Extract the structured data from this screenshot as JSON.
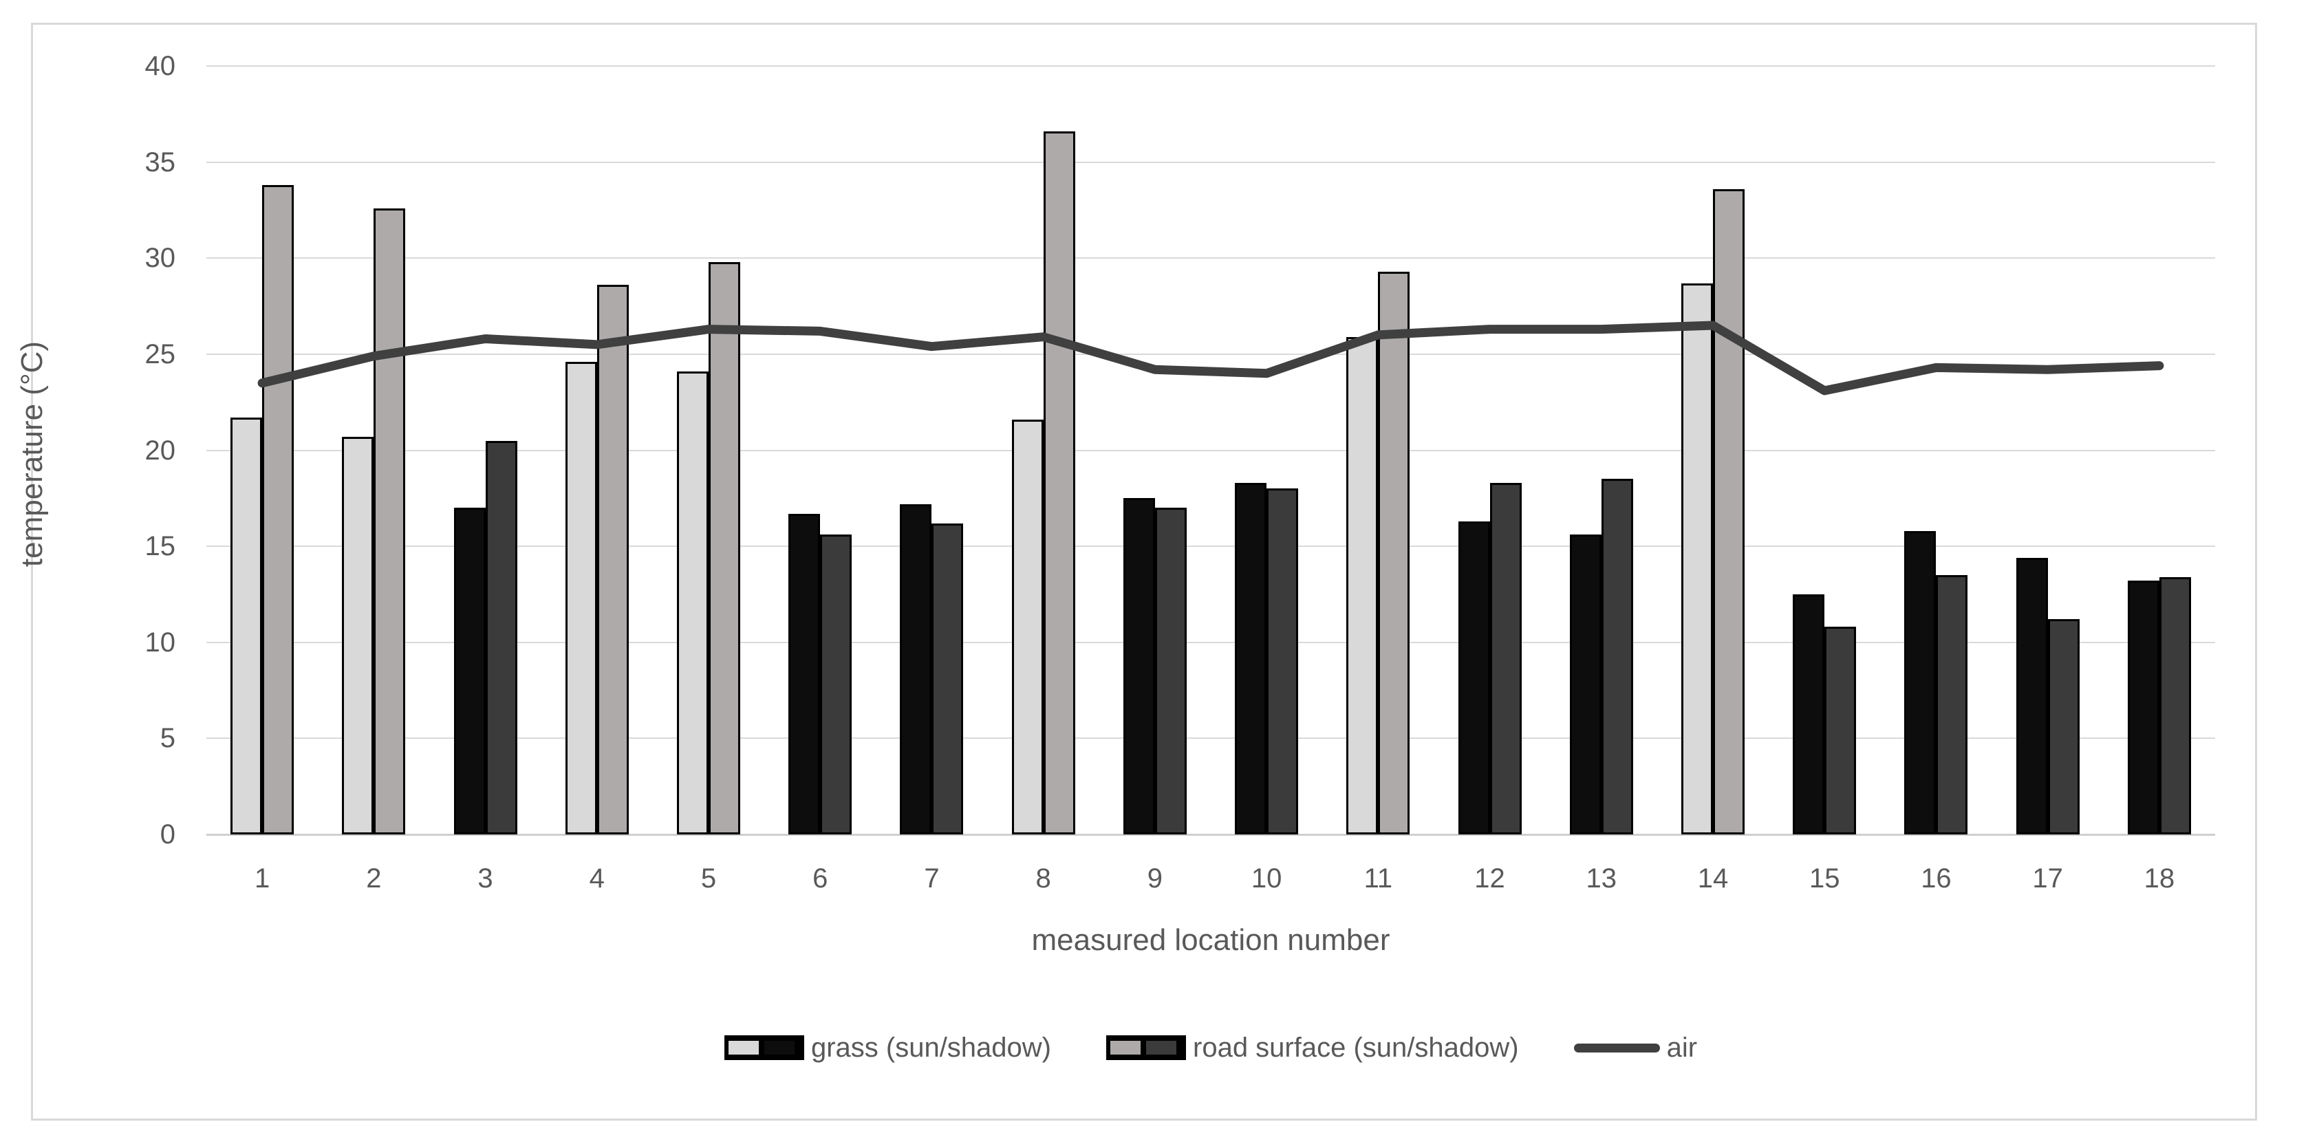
{
  "chart": {
    "y_ticks": [
      0,
      5,
      10,
      15,
      20,
      25,
      30,
      35,
      40
    ],
    "legend": {
      "grass_label": "grass (sun/shadow)",
      "road_label": "road surface (sun/shadow)",
      "air_label": "air"
    },
    "colors": {
      "grass_sun": "#d9d9d9",
      "grass_shadow": "#0d0d0d",
      "road_sun": "#aeaaaa",
      "road_shadow": "#3b3b3b",
      "air_line": "#404040",
      "gridline": "#d9d9d9",
      "axis_line": "#cfcfcf",
      "bar_border": "#000000",
      "text": "#595959",
      "chart_border": "#d9d9d9"
    }
  },
  "chart_data": {
    "type": "bar+line",
    "title": "",
    "xlabel": "measured location number",
    "ylabel": "temperature (°C)",
    "ylim": [
      0,
      40
    ],
    "y_tick_step": 5,
    "grid": true,
    "legend_position": "bottom",
    "categories": [
      "1",
      "2",
      "3",
      "4",
      "5",
      "6",
      "7",
      "8",
      "9",
      "10",
      "11",
      "12",
      "13",
      "14",
      "15",
      "16",
      "17",
      "18"
    ],
    "location_light": [
      "sun",
      "sun",
      "shadow",
      "sun",
      "sun",
      "shadow",
      "shadow",
      "sun",
      "shadow",
      "shadow",
      "sun",
      "shadow",
      "shadow",
      "sun",
      "shadow",
      "shadow",
      "shadow",
      "shadow"
    ],
    "series": [
      {
        "name": "grass (sun/shadow)",
        "type": "bar",
        "color_sun": "#d9d9d9",
        "color_shadow": "#0d0d0d",
        "values": [
          21.7,
          20.7,
          17.0,
          24.6,
          24.1,
          16.7,
          17.2,
          21.6,
          17.5,
          18.3,
          25.9,
          16.3,
          15.6,
          28.7,
          12.5,
          15.8,
          14.4,
          13.2
        ]
      },
      {
        "name": "road surface (sun/shadow)",
        "type": "bar",
        "color_sun": "#aeaaaa",
        "color_shadow": "#3b3b3b",
        "values": [
          33.8,
          32.6,
          20.5,
          28.6,
          29.8,
          15.6,
          16.2,
          36.6,
          17.0,
          18.0,
          29.3,
          18.3,
          18.5,
          33.6,
          10.8,
          13.5,
          11.2,
          13.4
        ]
      },
      {
        "name": "air",
        "type": "line",
        "color": "#404040",
        "values": [
          23.5,
          24.9,
          25.8,
          25.5,
          26.3,
          26.2,
          25.4,
          25.9,
          24.2,
          24.0,
          26.0,
          26.3,
          26.3,
          26.5,
          23.1,
          24.3,
          24.2,
          24.4
        ]
      }
    ]
  }
}
